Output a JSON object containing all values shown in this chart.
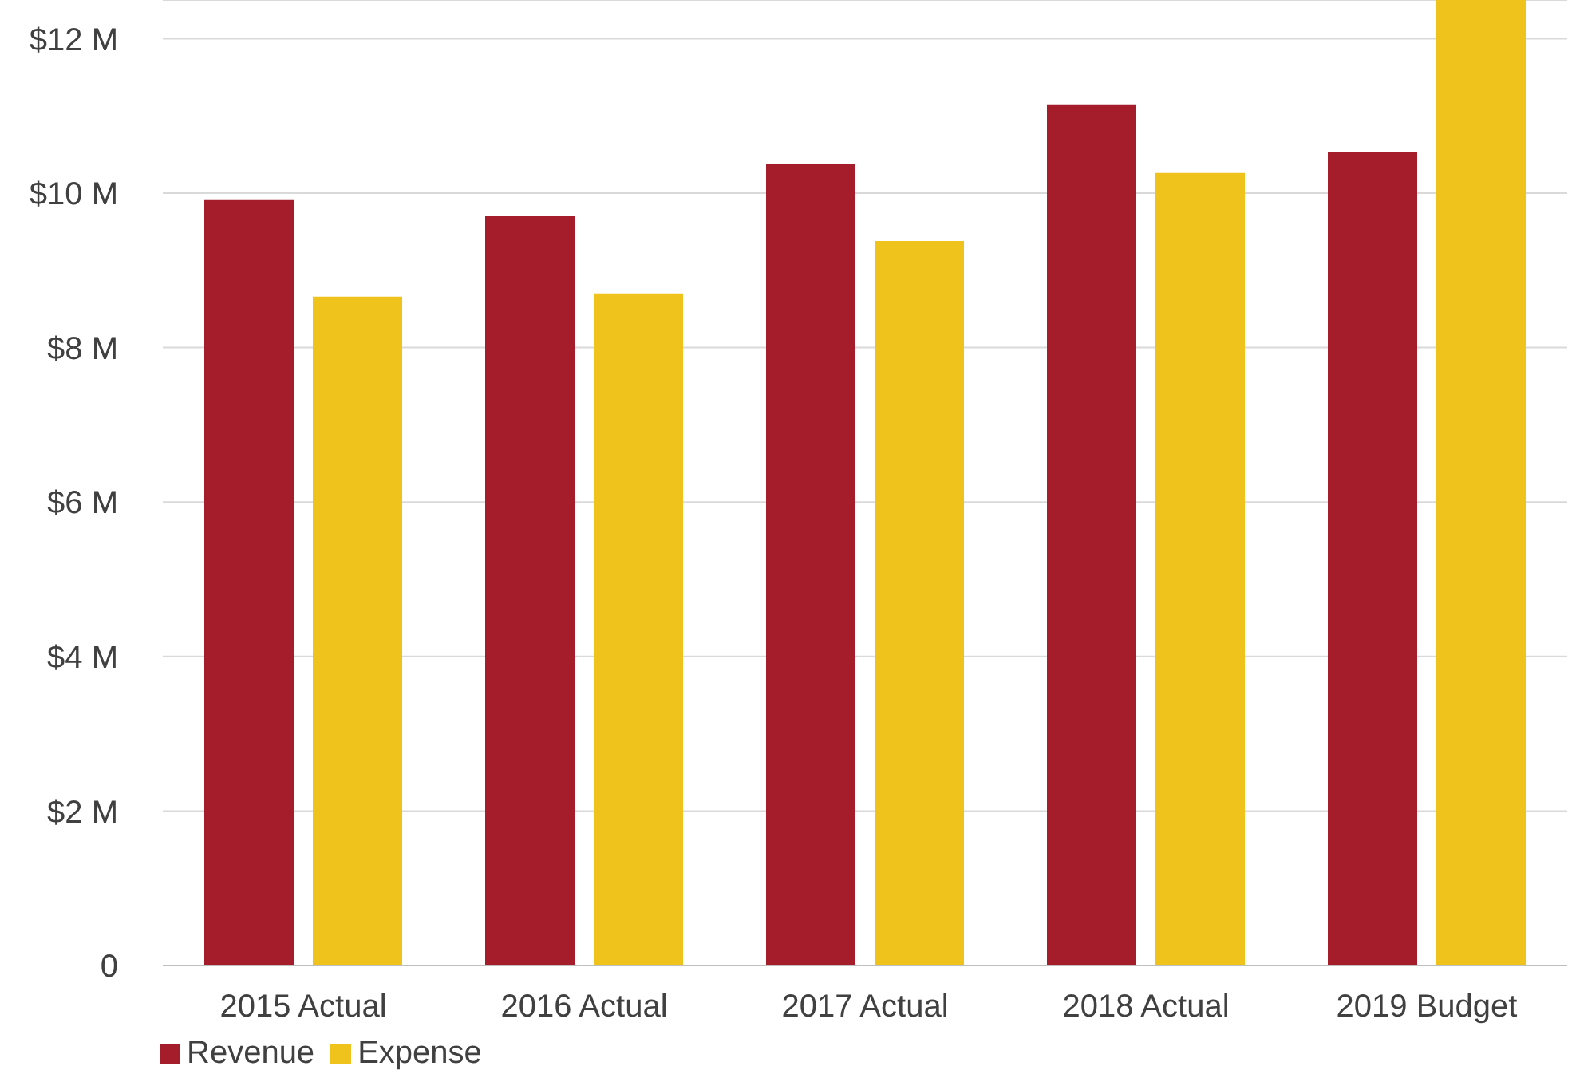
{
  "chart_data": {
    "type": "bar",
    "categories": [
      "2015 Actual",
      "2016 Actual",
      "2017 Actual",
      "2018 Actual",
      "2019 Budget"
    ],
    "series": [
      {
        "name": "Revenue",
        "color": "#a51d2b",
        "values": [
          9.91,
          9.7,
          10.38,
          11.15,
          10.53
        ]
      },
      {
        "name": "Expense",
        "color": "#efc21c",
        "values": [
          8.66,
          8.7,
          9.38,
          10.26,
          12.5
        ]
      }
    ],
    "ylim": [
      0,
      12.5
    ],
    "yticks": [
      {
        "value": 0,
        "label": "0"
      },
      {
        "value": 2,
        "label": "$2 M"
      },
      {
        "value": 4,
        "label": "$4 M"
      },
      {
        "value": 6,
        "label": "$6 M"
      },
      {
        "value": 8,
        "label": "$8 M"
      },
      {
        "value": 10,
        "label": "$10 M"
      },
      {
        "value": 12,
        "label": "$12 M"
      }
    ],
    "grid": "y",
    "legend": "bottom left"
  }
}
